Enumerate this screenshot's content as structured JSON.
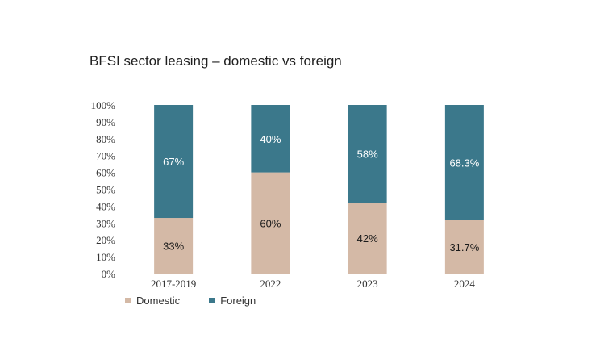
{
  "colors": {
    "domestic": "#d4b9a6",
    "foreign": "#3b788b",
    "domestic_label": "#1a1a1a",
    "foreign_label": "#ffffff",
    "axis": "#bfbfbf"
  },
  "chart_data": {
    "type": "bar",
    "stacked": true,
    "title": "BFSI sector leasing – domestic vs foreign",
    "xlabel": "",
    "ylabel": "",
    "ylim": [
      0,
      100
    ],
    "yticks": [
      "0%",
      "10%",
      "20%",
      "30%",
      "40%",
      "50%",
      "60%",
      "70%",
      "80%",
      "90%",
      "100%"
    ],
    "categories": [
      "2017-2019",
      "2022",
      "2023",
      "2024"
    ],
    "series": [
      {
        "name": "Domestic",
        "values": [
          33,
          60,
          42,
          31.7
        ],
        "labels": [
          "33%",
          "60%",
          "42%",
          "31.7%"
        ]
      },
      {
        "name": "Foreign",
        "values": [
          67,
          40,
          58,
          68.3
        ],
        "labels": [
          "67%",
          "40%",
          "58%",
          "68.3%"
        ]
      }
    ],
    "legend_position": "bottom-left",
    "grid": false
  }
}
